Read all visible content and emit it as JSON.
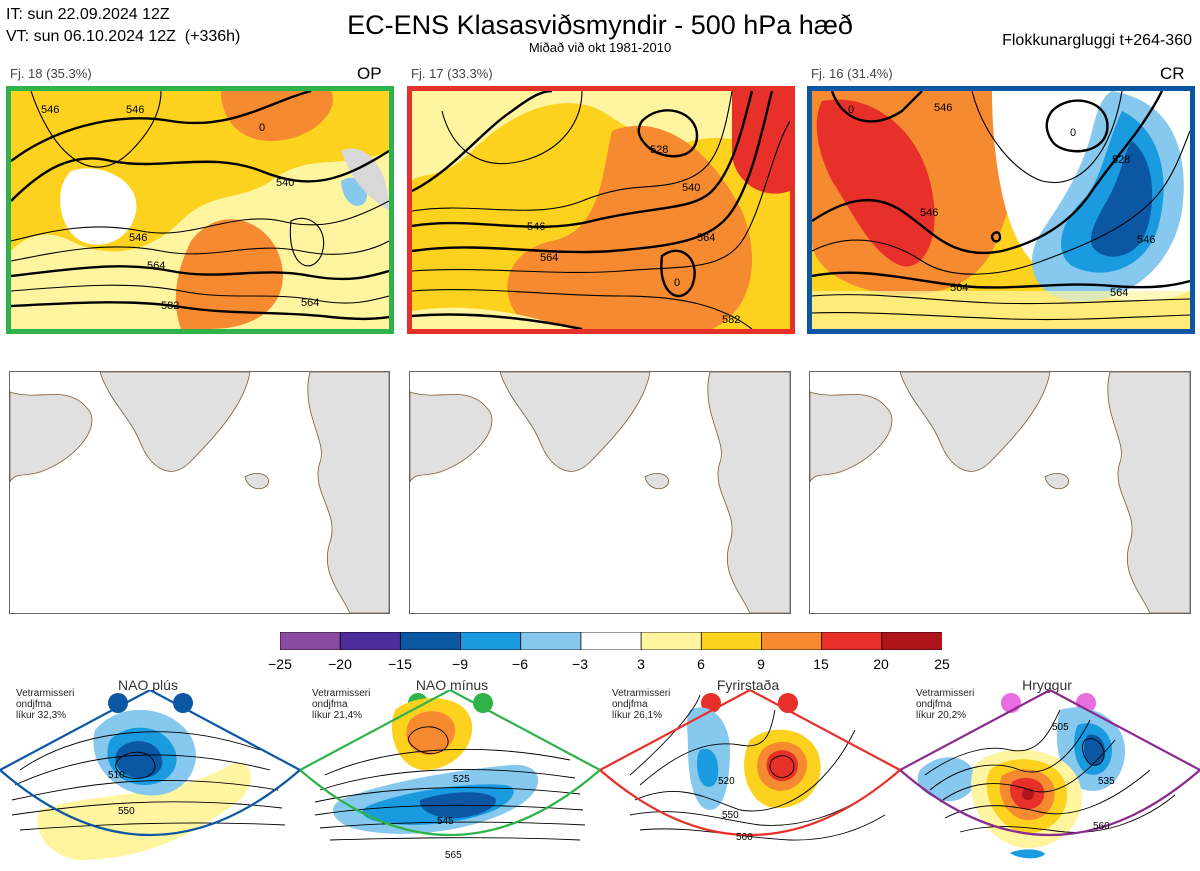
{
  "header": {
    "it_line": "IT: sun 22.09.2024 12Z",
    "vt_line": "VT: sun 06.10.2024 12Z  (+336h)",
    "title": "EC-ENS Klasasviðsmyndir - 500 hPa hæð",
    "subtitle": "Miðað við okt 1981-2010",
    "window": "Flokkunargluggi t+264-360"
  },
  "clusters": [
    {
      "label": "Fj. 18 (35.3%)",
      "tag": "OP",
      "border": "#2eb34a",
      "contours": [
        "546",
        "546",
        "540",
        "546",
        "564",
        "582",
        "564",
        "0"
      ]
    },
    {
      "label": "Fj. 17 (33.3%)",
      "tag": "",
      "border": "#e8302b",
      "contours": [
        "528",
        "540",
        "546",
        "564",
        "564",
        "582",
        "0"
      ]
    },
    {
      "label": "Fj. 16 (31.4%)",
      "tag": "CR",
      "border": "#0b57a4",
      "contours": [
        "546",
        "528",
        "546",
        "546",
        "564",
        "564",
        "0",
        "0"
      ]
    }
  ],
  "colorbar": {
    "ticks": [
      "−25",
      "−20",
      "−15",
      "−9",
      "−6",
      "−3",
      "3",
      "6",
      "9",
      "15",
      "20",
      "25"
    ],
    "colors": [
      "#8a4aa0",
      "#4b2e9a",
      "#0b57a4",
      "#1a9be0",
      "#86c8ee",
      "#ffffff",
      "#fff5a0",
      "#fcd21f",
      "#f58a30",
      "#e8302b",
      "#b0141c"
    ]
  },
  "regimes": [
    {
      "name": "NAO plús",
      "note_lines": [
        "Vetrarmisseri",
        "ondjfma",
        "líkur 32,3%"
      ],
      "dot_color": "#0b57a4",
      "border": "#0b57a4",
      "contours": [
        "510",
        "550"
      ]
    },
    {
      "name": "NAO mínus",
      "note_lines": [
        "Vetrarmisseri",
        "ondjfma",
        "líkur 21,4%"
      ],
      "dot_color": "#2eb34a",
      "border": "#2eb34a",
      "contours": [
        "525",
        "545",
        "565"
      ]
    },
    {
      "name": "Fyrirstaða",
      "note_lines": [
        "Vetrarmisseri",
        "ondjfma",
        "líkur 26,1%"
      ],
      "dot_color": "#e8302b",
      "border": "#e8302b",
      "contours": [
        "520",
        "550",
        "560"
      ]
    },
    {
      "name": "Hryggur",
      "note_lines": [
        "Vetrarmisseri",
        "ondjfma",
        "líkur 20,2%"
      ],
      "dot_color": "#e86de0",
      "border": "#8b2a8e",
      "contours": [
        "505",
        "535",
        "560"
      ]
    }
  ]
}
